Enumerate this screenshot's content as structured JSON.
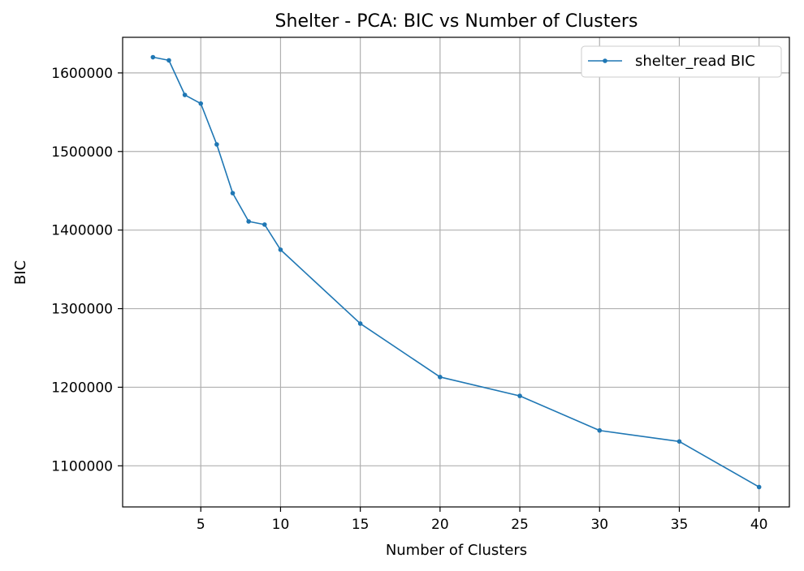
{
  "chart_data": {
    "type": "line",
    "title": "Shelter - PCA: BIC vs Number of Clusters",
    "xlabel": "Number of Clusters",
    "ylabel": "BIC",
    "xlim": [
      0.1,
      41.9
    ],
    "ylim": [
      1047700,
      1645300
    ],
    "xticks": [
      5,
      10,
      15,
      20,
      25,
      30,
      35,
      40
    ],
    "yticks": [
      1100000,
      1200000,
      1300000,
      1400000,
      1500000,
      1600000
    ],
    "grid": true,
    "legend_position": "top-right",
    "series": [
      {
        "name": "shelter_read BIC",
        "color": "#1f77b4",
        "marker": "circle",
        "x": [
          2,
          3,
          4,
          5,
          6,
          7,
          8,
          9,
          10,
          15,
          20,
          25,
          30,
          35,
          40
        ],
        "y": [
          1620000,
          1616000,
          1572000,
          1561000,
          1509000,
          1447000,
          1411000,
          1407000,
          1375000,
          1281000,
          1213000,
          1189000,
          1145000,
          1131000,
          1073000
        ]
      }
    ]
  }
}
